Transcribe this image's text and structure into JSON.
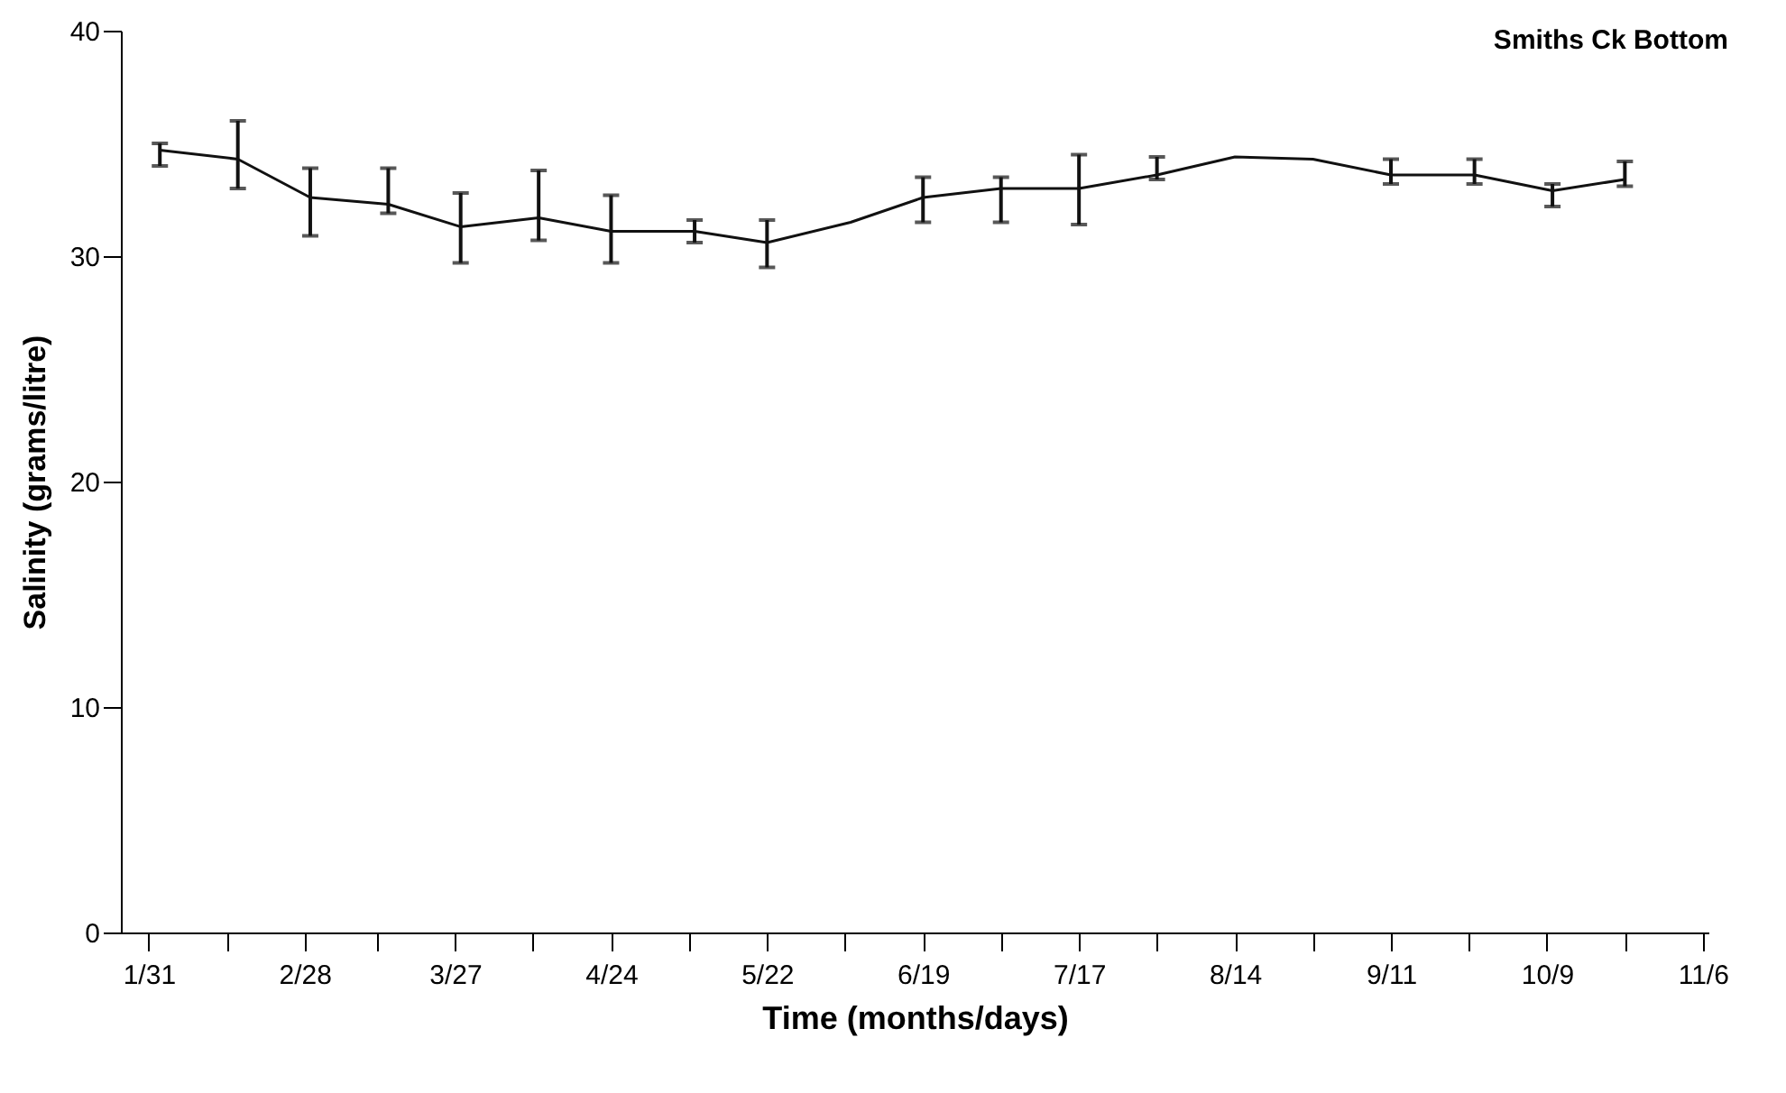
{
  "chart_data": {
    "type": "line",
    "title": "Smiths Ck Bottom",
    "xlabel": "Time (months/days)",
    "ylabel": "Salinity (grams/litre)",
    "x": [
      "--02-02",
      "--02-16",
      "--03-01",
      "--03-15",
      "--03-28",
      "--04-11",
      "--04-24",
      "--05-09",
      "--05-22",
      "--06-06",
      "--06-19",
      "--07-03",
      "--07-17",
      "--07-31",
      "--08-14",
      "--08-28",
      "--09-11",
      "--09-26",
      "--10-10",
      "--10-23"
    ],
    "series": [
      {
        "color": "#111111",
        "values": [
          34.7,
          34.3,
          32.6,
          32.3,
          31.3,
          31.7,
          31.1,
          31.1,
          30.6,
          31.5,
          32.6,
          33.0,
          33.0,
          33.6,
          34.4,
          34.3,
          33.6,
          33.6,
          32.9,
          33.4
        ],
        "errors": [
          [
            34.0,
            35.0
          ],
          [
            33.0,
            36.0
          ],
          [
            30.9,
            33.9
          ],
          [
            31.9,
            33.9
          ],
          [
            29.7,
            32.8
          ],
          [
            30.7,
            33.8
          ],
          [
            29.7,
            32.7
          ],
          [
            30.6,
            31.6
          ],
          [
            29.5,
            31.6
          ],
          null,
          [
            31.5,
            33.5
          ],
          [
            31.5,
            33.5
          ],
          [
            31.4,
            34.5
          ],
          [
            33.4,
            34.4
          ],
          null,
          null,
          [
            33.2,
            34.3
          ],
          [
            33.2,
            34.3
          ],
          [
            32.2,
            33.2
          ],
          [
            33.1,
            34.2
          ]
        ]
      }
    ],
    "xlim": [
      "--01-26",
      "--11-07"
    ],
    "xticks": [
      {
        "value": "--01-31",
        "label": "1/31"
      },
      {
        "value": "--02-14",
        "label": null
      },
      {
        "value": "--02-28",
        "label": "2/28"
      },
      {
        "value": "--03-13",
        "label": null
      },
      {
        "value": "--03-27",
        "label": "3/27"
      },
      {
        "value": "--04-10",
        "label": null
      },
      {
        "value": "--04-24",
        "label": "4/24"
      },
      {
        "value": "--05-08",
        "label": null
      },
      {
        "value": "--05-22",
        "label": "5/22"
      },
      {
        "value": "--06-05",
        "label": null
      },
      {
        "value": "--06-19",
        "label": "6/19"
      },
      {
        "value": "--07-03",
        "label": null
      },
      {
        "value": "--07-17",
        "label": "7/17"
      },
      {
        "value": "--07-31",
        "label": null
      },
      {
        "value": "--08-14",
        "label": "8/14"
      },
      {
        "value": "--08-28",
        "label": null
      },
      {
        "value": "--09-11",
        "label": "9/11"
      },
      {
        "value": "--09-25",
        "label": null
      },
      {
        "value": "--10-09",
        "label": "10/9"
      },
      {
        "value": "--10-23",
        "label": null
      },
      {
        "value": "--11-06",
        "label": "11/6"
      }
    ],
    "ylim": [
      0,
      40
    ],
    "yticks": [
      0,
      10,
      20,
      30,
      40
    ],
    "grid": false,
    "marker": "none",
    "line_style": "solid"
  }
}
